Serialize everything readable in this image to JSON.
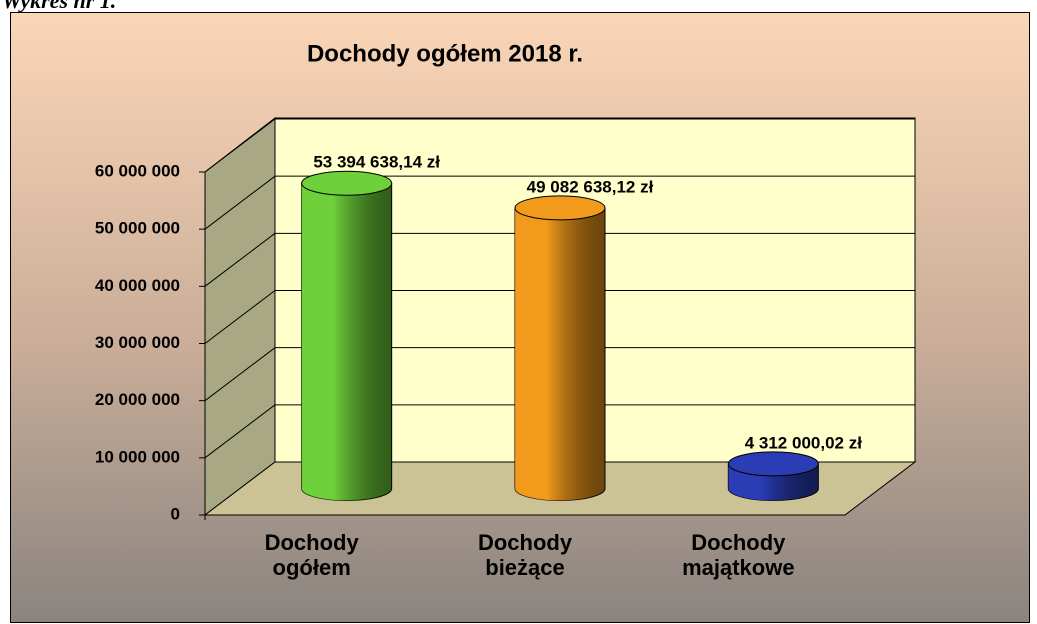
{
  "caption": "Wykres nr 1.",
  "chart_data": {
    "type": "cylinder",
    "title": "Dochody ogółem 2018 r.",
    "categories": [
      "Dochody ogółem",
      "Dochody bieżące",
      "Dochody majątkowe"
    ],
    "values": [
      53394638.14,
      49082638.12,
      4312000.02
    ],
    "value_labels": [
      "53 394 638,14 zł",
      "49 082 638,12 zł",
      "4 312 000,02 zł"
    ],
    "colors": [
      "#6fd13a",
      "#f29a1c",
      "#2a3db5"
    ],
    "ylim": [
      0,
      60000000
    ],
    "yticks": [
      {
        "value": 0,
        "label": "0"
      },
      {
        "value": 10000000,
        "label": "10 000 000"
      },
      {
        "value": 20000000,
        "label": "20 000 000"
      },
      {
        "value": 30000000,
        "label": "30 000 000"
      },
      {
        "value": 40000000,
        "label": "40 000 000"
      },
      {
        "value": 50000000,
        "label": "50 000 000"
      },
      {
        "value": 60000000,
        "label": "60 000 000"
      }
    ],
    "grid": true
  }
}
